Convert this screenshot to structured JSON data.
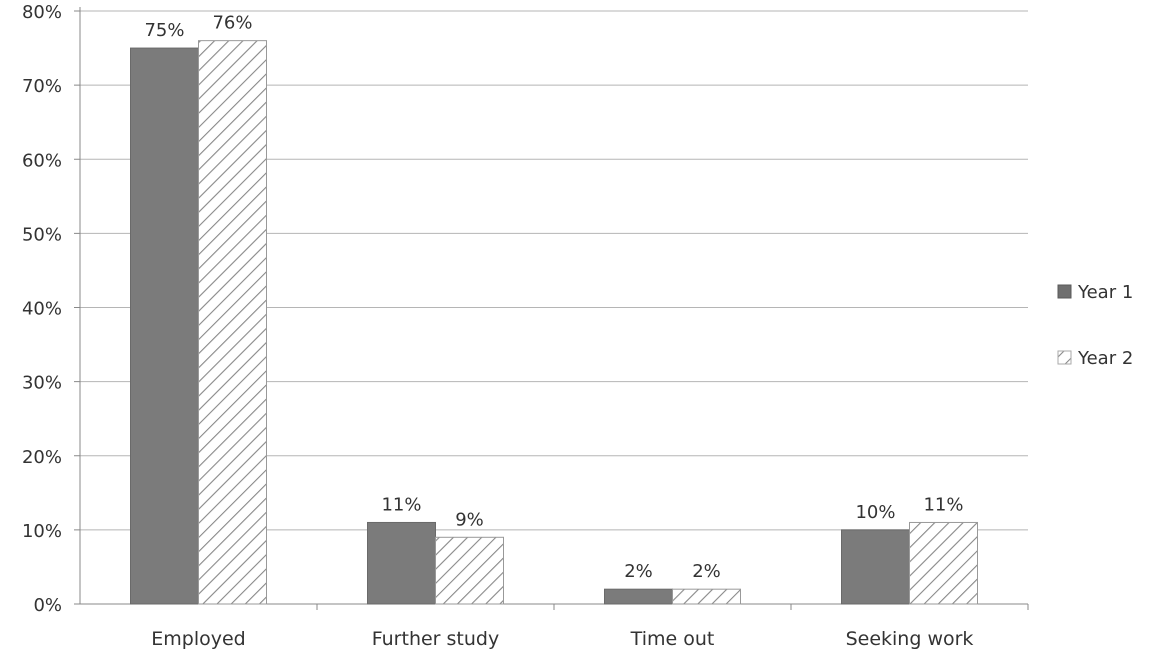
{
  "chart_data": {
    "type": "bar",
    "categories": [
      "Employed",
      "Further study",
      "Time out",
      "Seeking work"
    ],
    "series": [
      {
        "name": "Year 1",
        "values": [
          75,
          11,
          2,
          10
        ],
        "labels": [
          "75%",
          "11%",
          "2%",
          "10%"
        ],
        "color": "#7a7a7a",
        "fill": "solid"
      },
      {
        "name": "Year 2",
        "values": [
          76,
          9,
          2,
          11
        ],
        "labels": [
          "76%",
          "9%",
          "2%",
          "11%"
        ],
        "color": "#888888",
        "fill": "diagonal-hatch"
      }
    ],
    "ylim": [
      0,
      80
    ],
    "yticks": [
      0,
      10,
      20,
      30,
      40,
      50,
      60,
      70,
      80
    ],
    "ytick_labels": [
      "0%",
      "10%",
      "20%",
      "30%",
      "40%",
      "50%",
      "60%",
      "70%",
      "80%"
    ],
    "grid": true,
    "legend_position": "right",
    "title": "",
    "xlabel": "",
    "ylabel": ""
  }
}
